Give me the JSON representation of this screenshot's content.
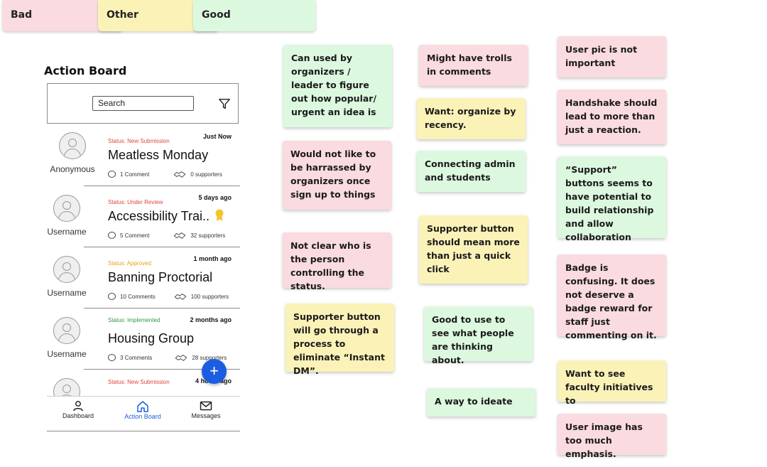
{
  "legend": {
    "bad": "Bad",
    "other": "Other",
    "good": "Good"
  },
  "board": {
    "title": "Action Board",
    "search_placeholder": "Search",
    "items": [
      {
        "user": "Anonymous",
        "status": "Status: New Submission",
        "status_color": "#e0443a",
        "time": "Just Now",
        "title": "Meatless Monday",
        "comments": "1 Comment",
        "supporters": "0 supporters"
      },
      {
        "user": "Username",
        "status": "Status: Under Review",
        "status_color": "#e0443a",
        "time": "5 days ago",
        "title": "Accessibility Trai..",
        "comments": "5 Comment",
        "supporters": "32 supporters"
      },
      {
        "user": "Username",
        "status": "Status: Approved",
        "status_color": "#e8a317",
        "time": "1 month ago",
        "title": "Banning Proctorial",
        "comments": "10 Comments",
        "supporters": "100 supporters"
      },
      {
        "user": "Username",
        "status": "Status: Implemented",
        "status_color": "#2e9a3a",
        "time": "2 months ago",
        "title": "Housing Group",
        "comments": "3 Comments",
        "supporters": "28 supporters"
      },
      {
        "user": "",
        "status": "Status: New Submission",
        "status_color": "#e0443a",
        "time": "4 hours ago",
        "title": "",
        "comments": "",
        "supporters": ""
      }
    ],
    "fab_label": "+",
    "nav": {
      "dashboard": "Dashboard",
      "action_board": "Action Board",
      "messages": "Messages"
    }
  },
  "notes": {
    "n1": "Can used by organizers / leader to figure out how popular/ urgent an idea is",
    "n2": "Would not like to be harrassed by organizers once sign up to things",
    "n3": "Not clear who is the person controlling the status.",
    "n4": "Supporter button will go through a process to eliminate “Instant DM”.",
    "n5": "Might have trolls in comments",
    "n6": "Want: organize by recency.",
    "n7": "Connecting admin and students",
    "n8": "Supporter button should mean more than just a quick click",
    "n9": "Good to use to see what people are thinking about.",
    "n10": "A way to ideate",
    "n11": "User pic is not important",
    "n12": "Handshake should lead to more than just a reaction.",
    "n13": "“Support” buttons seems to have potential to build relationship and allow collaboration",
    "n14": "Badge is confusing. It does not deserve a badge reward for staff just commenting on it.",
    "n15": "Want to see faculty initiatives to",
    "n16": "User image has too much emphasis."
  }
}
